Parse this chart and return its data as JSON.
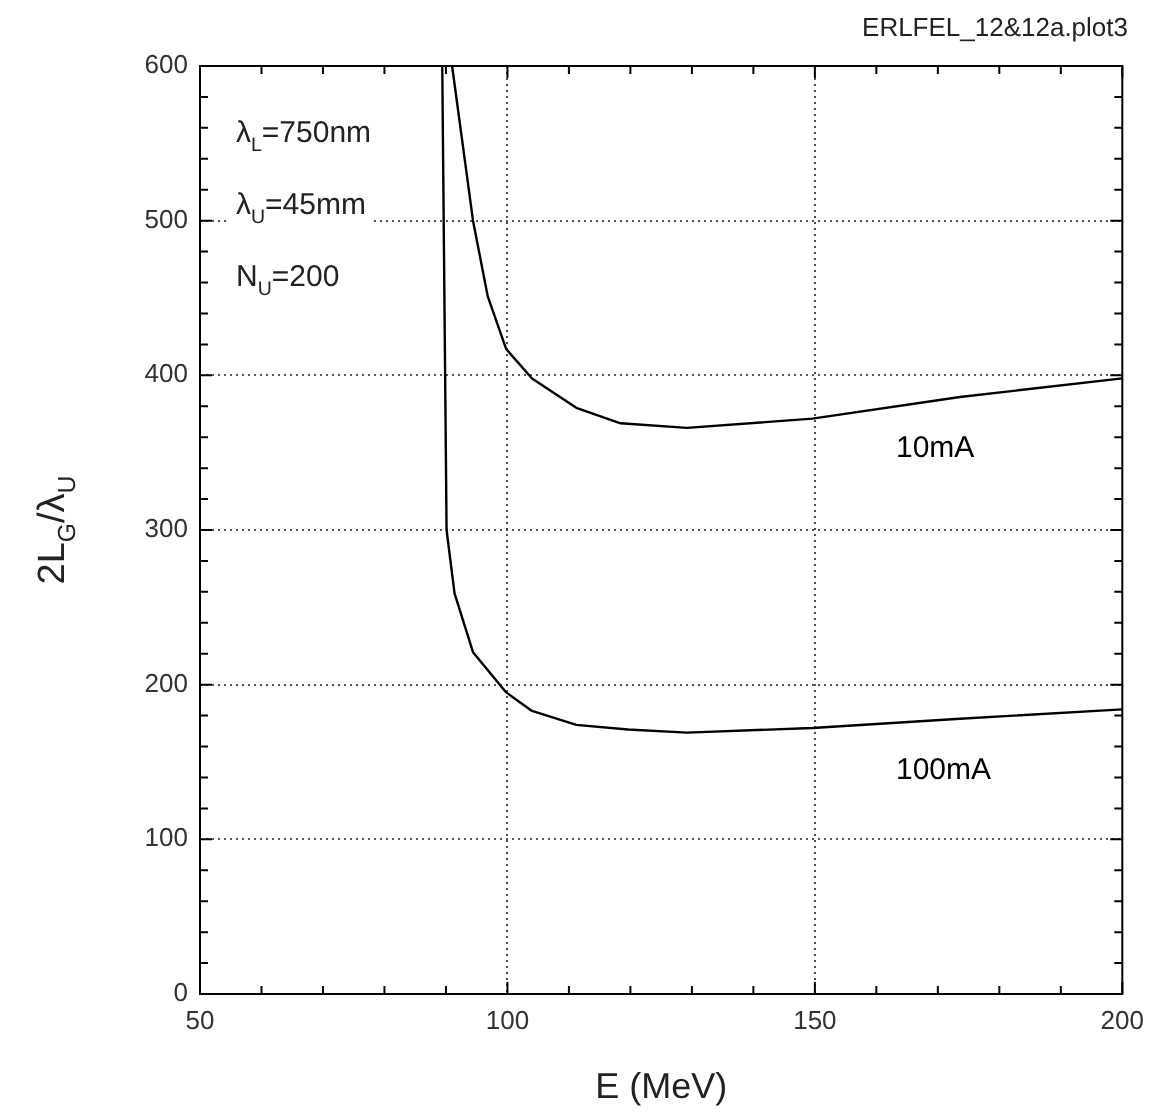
{
  "chart_data": {
    "type": "line",
    "title": "ERLFEL_12&12a.plot3",
    "xlabel": "E (MeV)",
    "ylabel": "2L$_{G}$/λ$_{U}$",
    "annotations": [
      "λ$_{L}$=750nm",
      "λ$_{U}$=45mm",
      "N$_{U}$=200"
    ],
    "series": [
      {
        "name": "10mA",
        "color": "#000000",
        "x": [
          91.0,
          94.4,
          96.8,
          99.8,
          104,
          111.2,
          118.4,
          129.2,
          149.6,
          173.6,
          200
        ],
        "values": [
          600,
          500,
          451,
          417,
          398,
          379,
          369,
          366,
          372,
          386,
          398
        ]
      },
      {
        "name": "100mA",
        "color": "#000000",
        "x": [
          89.4,
          90.1,
          91.4,
          94.4,
          99.8,
          104,
          111.2,
          119.6,
          129.2,
          149.6,
          173.6,
          200
        ],
        "values": [
          600,
          300,
          259,
          221,
          195,
          183,
          174,
          171,
          169,
          172,
          178,
          184
        ]
      }
    ],
    "xlim": [
      50,
      200
    ],
    "ylim": [
      0,
      600
    ],
    "xticks": [
      50,
      {
        "value": 60,
        "label": null
      },
      {
        "value": 70,
        "label": null
      },
      {
        "value": 80,
        "label": null
      },
      {
        "value": 90,
        "label": null
      },
      100,
      {
        "value": 110,
        "label": null
      },
      {
        "value": 120,
        "label": null
      },
      {
        "value": 130,
        "label": null
      },
      {
        "value": 140,
        "label": null
      },
      150,
      {
        "value": 160,
        "label": null
      },
      {
        "value": 170,
        "label": null
      },
      {
        "value": 180,
        "label": null
      },
      {
        "value": 190,
        "label": null
      },
      200
    ],
    "yticks": [
      0,
      {
        "value": 20,
        "label": null
      },
      {
        "value": 40,
        "label": null
      },
      {
        "value": 60,
        "label": null
      },
      {
        "value": 80,
        "label": null
      },
      100,
      {
        "value": 120,
        "label": null
      },
      {
        "value": 140,
        "label": null
      },
      {
        "value": 160,
        "label": null
      },
      {
        "value": 180,
        "label": null
      },
      200,
      {
        "value": 220,
        "label": null
      },
      {
        "value": 240,
        "label": null
      },
      {
        "value": 260,
        "label": null
      },
      {
        "value": 280,
        "label": null
      },
      300,
      {
        "value": 320,
        "label": null
      },
      {
        "value": 340,
        "label": null
      },
      {
        "value": 360,
        "label": null
      },
      {
        "value": 380,
        "label": null
      },
      400,
      {
        "value": 420,
        "label": null
      },
      {
        "value": 440,
        "label": null
      },
      {
        "value": 460,
        "label": null
      },
      {
        "value": 480,
        "label": null
      },
      500,
      {
        "value": 520,
        "label": null
      },
      {
        "value": 540,
        "label": null
      },
      {
        "value": 560,
        "label": null
      },
      {
        "value": 580,
        "label": null
      },
      600
    ],
    "grid": true,
    "legend": false,
    "marker": "none",
    "line_style": "solid"
  }
}
